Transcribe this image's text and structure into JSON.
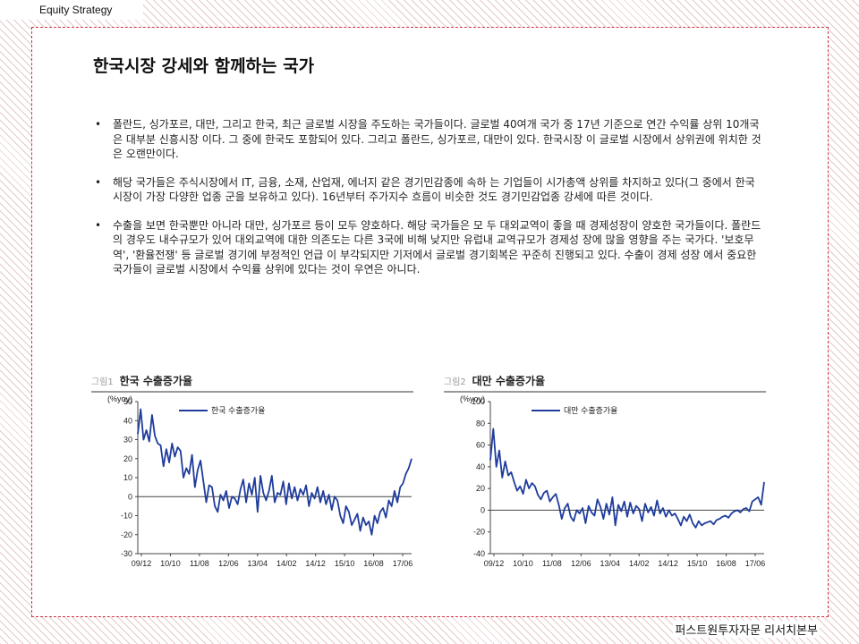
{
  "header": {
    "tag": "Equity  Strategy"
  },
  "page_title": "한국시장 강세와 함께하는 국가",
  "bullets": [
    "폴란드, 싱가포르, 대만, 그리고 한국, 최근 글로벌 시장을 주도하는 국가들이다. 글로벌 40여개 국가 중 17년 기준으로 연간 수익률 상위 10개국은 대부분 신흥시장 이다. 그 중에 한국도 포함되어 있다. 그리고 폴란드, 싱가포르, 대만이 있다. 한국시장 이 글로벌 시장에서 상위권에 위치한 것은 오랜만이다.",
    "해당 국가들은 주식시장에서 IT, 금융, 소재, 산업재, 에너지 같은 경기민감종에 속하 는 기업들이 시가총액 상위를 차지하고 있다(그 중에서 한국시장이 가장 다양한 업종 군을 보유하고 있다). 16년부터 주가지수 흐름이 비슷한 것도 경기민감업종 강세에 따른 것이다.",
    "수출을 보면 한국뿐만 아니라 대만, 싱가포르 등이 모두 양호하다. 해당 국가들은 모 두 대외교역이 좋을 때 경제성장이 양호한 국가들이다. 폴란드의 경우도 내수규모가 있어 대외교역에 대한 의존도는 다른 3국에 비해 낮지만 유럽내 교역규모가 경제성 장에 많을 영향을 주는 국가다. '보호무역', '환율전쟁' 등 글로벌 경기에 부정적인 언급 이 부각되지만 기저에서 글로벌 경기회복은 꾸준히 진행되고 있다. 수출이 경제 성장 에서 중요한 국가들이 글로벌 시장에서 수익률 상위에 있다는 것이 우연은 아니다."
  ],
  "figures": [
    {
      "num": "그림1",
      "title": "한국 수출증가율"
    },
    {
      "num": "그림2",
      "title": "대만 수출증가율"
    }
  ],
  "footer": "퍼스트원투자자문 리서치본부",
  "chart_data": [
    {
      "type": "line",
      "title": "한국 수출증가율",
      "ylabel": "(%yoy)",
      "ylim": [
        -30,
        50
      ],
      "yticks": [
        -30,
        -20,
        -10,
        0,
        10,
        20,
        30,
        40,
        50
      ],
      "xticks": [
        "09/12",
        "10/10",
        "11/08",
        "12/06",
        "13/04",
        "14/02",
        "14/12",
        "15/10",
        "16/08",
        "17/06"
      ],
      "legend": "top-left",
      "line_color": "#1f3c9c",
      "series": [
        {
          "name": "한국 수출증가율",
          "values": [
            33,
            46,
            30,
            35,
            29,
            43,
            32,
            28,
            27,
            16,
            25,
            18,
            28,
            21,
            26,
            24,
            10,
            15,
            12,
            22,
            5,
            14,
            19,
            8,
            -3,
            6,
            5,
            -5,
            -8,
            1,
            -2,
            3,
            -6,
            0,
            -1,
            -4,
            4,
            9,
            -3,
            7,
            1,
            10,
            -8,
            11,
            2,
            -2,
            3,
            11,
            -3,
            2,
            1,
            8,
            -4,
            7,
            -1,
            5,
            -2,
            4,
            1,
            6,
            -5,
            2,
            -1,
            5,
            -3,
            3,
            -4,
            1,
            -7,
            0,
            -2,
            -10,
            -14,
            -5,
            -8,
            -15,
            -12,
            -9,
            -18,
            -11,
            -15,
            -13,
            -20,
            -10,
            -14,
            -8,
            -6,
            -11,
            -2,
            -5,
            3,
            -3,
            5,
            7,
            12,
            15,
            20
          ]
        }
      ]
    },
    {
      "type": "line",
      "title": "대만 수출증가율",
      "ylabel": "(%yoy)",
      "ylim": [
        -40,
        100
      ],
      "yticks": [
        -40,
        -20,
        0,
        20,
        40,
        60,
        80,
        100
      ],
      "xticks": [
        "09/12",
        "10/10",
        "11/08",
        "12/06",
        "13/04",
        "14/02",
        "14/12",
        "15/10",
        "16/08",
        "17/06"
      ],
      "legend": "top-left",
      "line_color": "#1f3c9c",
      "series": [
        {
          "name": "대만 수출증가율",
          "values": [
            46,
            75,
            40,
            55,
            30,
            45,
            32,
            35,
            26,
            18,
            22,
            15,
            28,
            20,
            25,
            22,
            14,
            10,
            16,
            18,
            8,
            12,
            15,
            5,
            -8,
            2,
            6,
            -6,
            -10,
            0,
            -3,
            2,
            -12,
            4,
            -2,
            -5,
            10,
            3,
            -8,
            6,
            -4,
            12,
            -14,
            5,
            -1,
            8,
            -6,
            7,
            -3,
            4,
            1,
            -10,
            6,
            -2,
            3,
            -5,
            9,
            -3,
            2,
            -6,
            0,
            -5,
            -3,
            -8,
            -14,
            -6,
            -10,
            -4,
            -12,
            -16,
            -10,
            -14,
            -12,
            -11,
            -10,
            -13,
            -9,
            -8,
            -6,
            -5,
            -7,
            -3,
            -1,
            0,
            -2,
            1,
            2,
            -1,
            8,
            10,
            12,
            5,
            26
          ]
        }
      ]
    }
  ]
}
